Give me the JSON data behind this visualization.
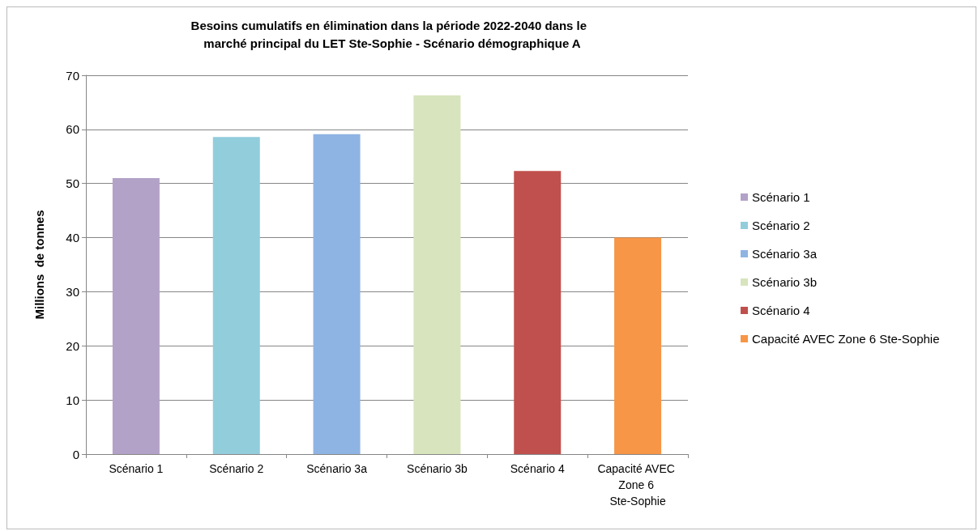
{
  "chart_data": {
    "type": "bar",
    "title": "Besoins cumulatifs en élimination dans la période 2022-2040 dans le  marché principal du LET Ste-Sophie - Scénario démographique A",
    "ylabel": "Millions  de tonnes",
    "categories": [
      "Scénario 1",
      "Scénario 2",
      "Scénario 3a",
      "Scénario 3b",
      "Scénario 4",
      "Capacité AVEC Zone 6 Ste-Sophie"
    ],
    "series": [
      {
        "name": "Scénario 1",
        "color": "#b3a2c7",
        "values": [
          51,
          null,
          null,
          null,
          null,
          null
        ]
      },
      {
        "name": "Scénario 2",
        "color": "#92cddc",
        "values": [
          null,
          58.6,
          null,
          null,
          null,
          null
        ]
      },
      {
        "name": "Scénario 3a",
        "color": "#8eb4e3",
        "values": [
          null,
          null,
          59.1,
          null,
          null,
          null
        ]
      },
      {
        "name": "Scénario 3b",
        "color": "#d7e4bd",
        "values": [
          null,
          null,
          null,
          66.3,
          null,
          null
        ]
      },
      {
        "name": "Scénario 4",
        "color": "#c0504d",
        "values": [
          null,
          null,
          null,
          null,
          52.3,
          null
        ]
      },
      {
        "name": "Capacité AVEC Zone 6 Ste-Sophie",
        "color": "#f79646",
        "values": [
          null,
          null,
          null,
          null,
          null,
          40
        ]
      }
    ],
    "ylim": [
      0,
      70
    ],
    "yticks": [
      0,
      10,
      20,
      30,
      40,
      50,
      60,
      70
    ],
    "grid": "y",
    "legend": "right"
  }
}
